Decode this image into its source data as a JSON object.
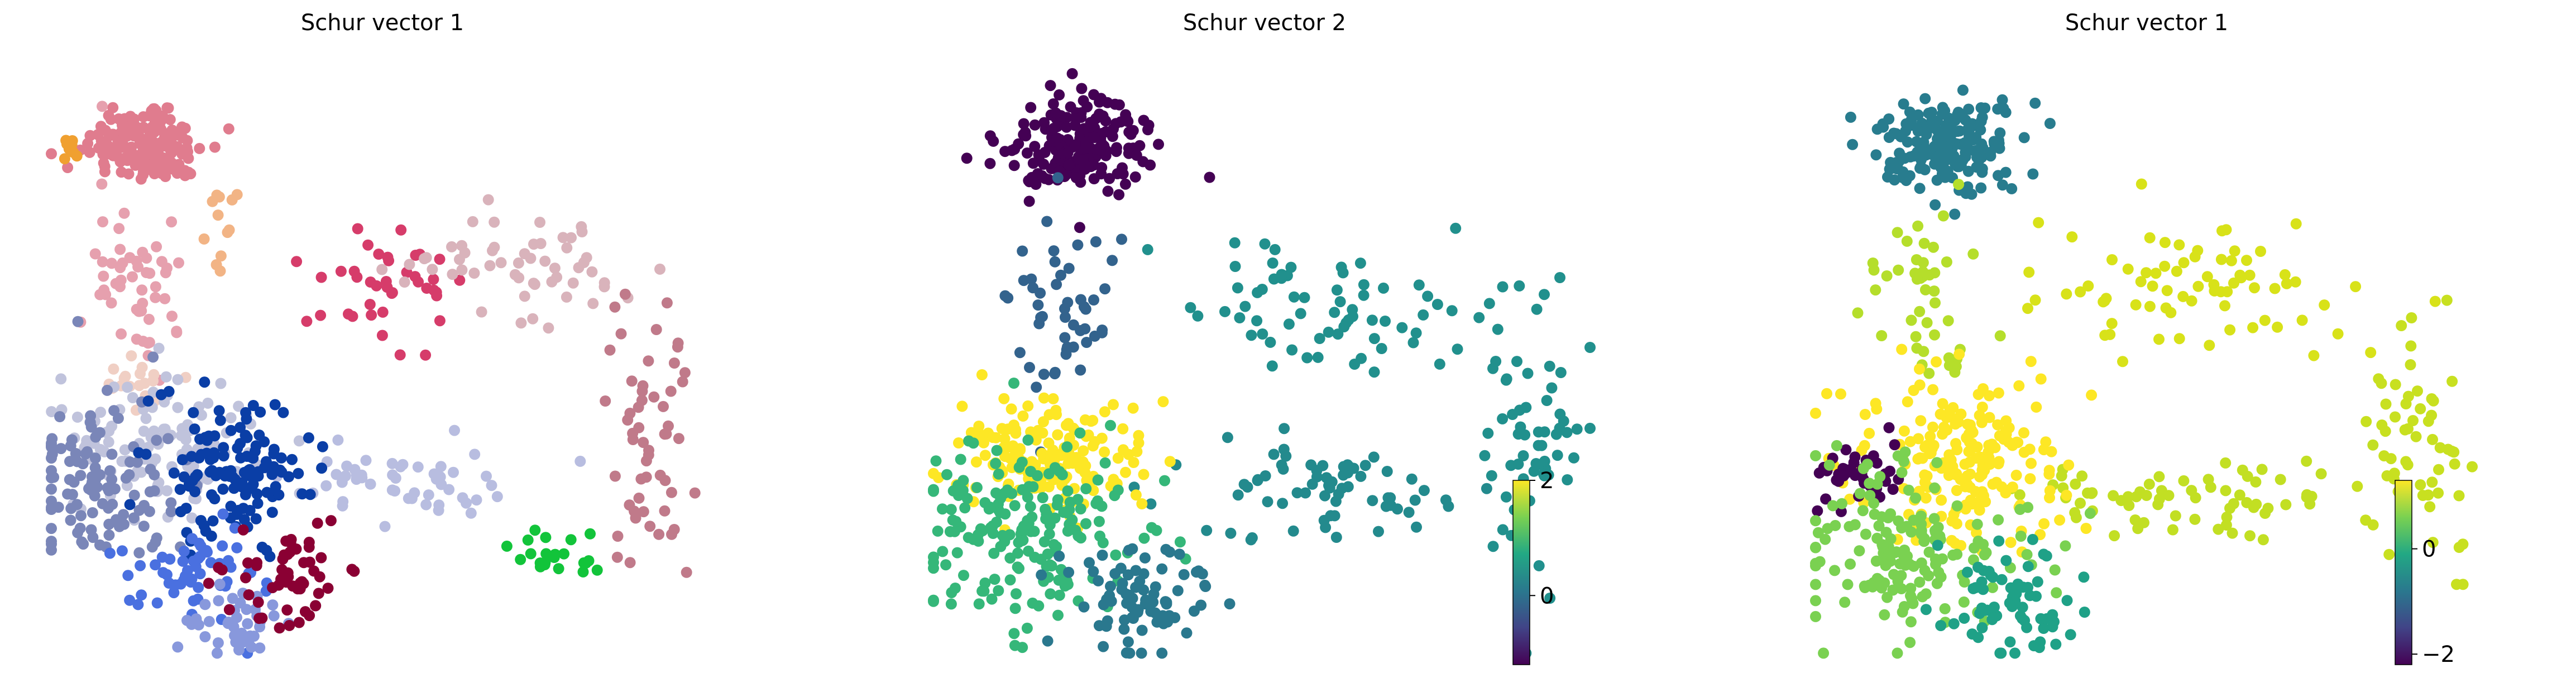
{
  "chart_data": [
    {
      "type": "scatter",
      "title": "Schur vector 1",
      "color_mode": "categorical",
      "clusters": [
        {
          "color": "#e07c8e",
          "center": [
            0.15,
            0.13
          ],
          "spread": [
            0.045,
            0.035
          ],
          "n": 170
        },
        {
          "color": "#e6a0ae",
          "center": [
            0.14,
            0.36
          ],
          "spread": [
            0.035,
            0.07
          ],
          "n": 55
        },
        {
          "color": "#d63c6a",
          "center": [
            0.5,
            0.37
          ],
          "spread": [
            0.05,
            0.05
          ],
          "n": 40
        },
        {
          "color": "#d9b3bb",
          "center": [
            0.73,
            0.34
          ],
          "spread": [
            0.09,
            0.05
          ],
          "n": 55
        },
        {
          "color": "#c07a8a",
          "center": [
            0.9,
            0.62
          ],
          "spread": [
            0.03,
            0.12
          ],
          "n": 55
        },
        {
          "color": "#b8bde0",
          "center": [
            0.52,
            0.7
          ],
          "spread": [
            0.1,
            0.03
          ],
          "n": 55
        },
        {
          "color": "#12c43a",
          "center": [
            0.76,
            0.82
          ],
          "spread": [
            0.03,
            0.015
          ],
          "n": 22
        },
        {
          "color": "#f0a030",
          "center": [
            0.04,
            0.14
          ],
          "spread": [
            0.008,
            0.01
          ],
          "n": 8
        },
        {
          "color": "#f2b485",
          "center": [
            0.27,
            0.26
          ],
          "spread": [
            0.02,
            0.04
          ],
          "n": 12
        },
        {
          "color": "#f0cfc4",
          "center": [
            0.14,
            0.53
          ],
          "spread": [
            0.04,
            0.025
          ],
          "n": 20
        },
        {
          "color": "#c0c3dc",
          "center": [
            0.17,
            0.64
          ],
          "spread": [
            0.07,
            0.06
          ],
          "n": 110
        },
        {
          "color": "#7a86b8",
          "center": [
            0.08,
            0.7
          ],
          "spread": [
            0.06,
            0.07
          ],
          "n": 110
        },
        {
          "color": "#0a3ea6",
          "center": [
            0.28,
            0.68
          ],
          "spread": [
            0.06,
            0.06
          ],
          "n": 130
        },
        {
          "color": "#4a70e0",
          "center": [
            0.22,
            0.86
          ],
          "spread": [
            0.05,
            0.04
          ],
          "n": 55
        },
        {
          "color": "#8898dc",
          "center": [
            0.29,
            0.94
          ],
          "spread": [
            0.04,
            0.03
          ],
          "n": 40
        },
        {
          "color": "#8a0033",
          "center": [
            0.37,
            0.86
          ],
          "spread": [
            0.04,
            0.05
          ],
          "n": 55
        }
      ]
    },
    {
      "type": "scatter",
      "title": "Schur vector 2",
      "color_mode": "continuous",
      "colormap": "viridis",
      "colorbar": {
        "ticks": [
          {
            "value": 2,
            "label": "2"
          },
          {
            "value": 0,
            "label": "0"
          }
        ],
        "range": [
          -1.2,
          2.0
        ]
      },
      "clusters": [
        {
          "color": "#440154",
          "center": [
            0.22,
            0.13
          ],
          "spread": [
            0.05,
            0.04
          ],
          "n": 190
        },
        {
          "color": "#33638d",
          "center": [
            0.2,
            0.4
          ],
          "spread": [
            0.04,
            0.08
          ],
          "n": 50
        },
        {
          "color": "#21908d",
          "center": [
            0.6,
            0.4
          ],
          "spread": [
            0.12,
            0.06
          ],
          "n": 70
        },
        {
          "color": "#21908d",
          "center": [
            0.9,
            0.62
          ],
          "spread": [
            0.04,
            0.12
          ],
          "n": 60
        },
        {
          "color": "#238a8d",
          "center": [
            0.58,
            0.72
          ],
          "spread": [
            0.11,
            0.04
          ],
          "n": 70
        },
        {
          "color": "#fde725",
          "center": [
            0.18,
            0.66
          ],
          "spread": [
            0.08,
            0.05
          ],
          "n": 170
        },
        {
          "color": "#35b779",
          "center": [
            0.14,
            0.78
          ],
          "spread": [
            0.09,
            0.08
          ],
          "n": 190
        },
        {
          "color": "#2a788e",
          "center": [
            0.32,
            0.9
          ],
          "spread": [
            0.05,
            0.05
          ],
          "n": 80
        }
      ]
    },
    {
      "type": "scatter",
      "title": "Schur vector 1",
      "color_mode": "continuous",
      "colormap": "viridis",
      "colorbar": {
        "ticks": [
          {
            "value": 0,
            "label": "0"
          },
          {
            "value": -2,
            "label": "−2"
          }
        ],
        "range": [
          -2.2,
          1.3
        ]
      },
      "clusters": [
        {
          "color": "#287c8e",
          "center": [
            0.21,
            0.13
          ],
          "spread": [
            0.05,
            0.04
          ],
          "n": 190
        },
        {
          "color": "#b5de2b",
          "center": [
            0.18,
            0.38
          ],
          "spread": [
            0.04,
            0.08
          ],
          "n": 45
        },
        {
          "color": "#d8e219",
          "center": [
            0.6,
            0.38
          ],
          "spread": [
            0.12,
            0.06
          ],
          "n": 75
        },
        {
          "color": "#c8e020",
          "center": [
            0.9,
            0.62
          ],
          "spread": [
            0.04,
            0.12
          ],
          "n": 60
        },
        {
          "color": "#c2df23",
          "center": [
            0.55,
            0.72
          ],
          "spread": [
            0.12,
            0.04
          ],
          "n": 70
        },
        {
          "color": "#fde725",
          "center": [
            0.22,
            0.66
          ],
          "spread": [
            0.08,
            0.07
          ],
          "n": 200
        },
        {
          "color": "#440154",
          "center": [
            0.07,
            0.68
          ],
          "spread": [
            0.04,
            0.03
          ],
          "n": 40
        },
        {
          "color": "#7ad151",
          "center": [
            0.14,
            0.82
          ],
          "spread": [
            0.09,
            0.07
          ],
          "n": 160
        },
        {
          "color": "#1fa187",
          "center": [
            0.3,
            0.9
          ],
          "spread": [
            0.05,
            0.05
          ],
          "n": 70
        }
      ]
    }
  ]
}
